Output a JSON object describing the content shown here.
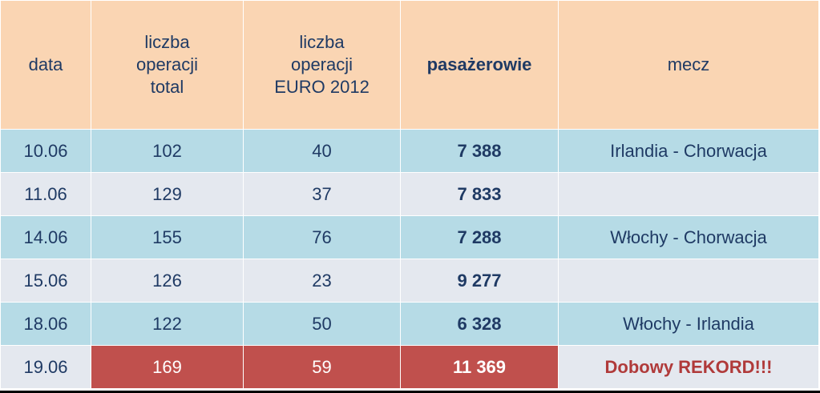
{
  "table": {
    "headers": {
      "data": "data",
      "total": [
        "liczba",
        "operacji",
        "total"
      ],
      "euro": [
        "liczba",
        "operacji",
        "EURO 2012"
      ],
      "pax": "pasażerowie",
      "mecz": "mecz"
    },
    "rows": [
      {
        "data": "10.06",
        "total": "102",
        "euro": "40",
        "pax": "7 388",
        "mecz": "Irlandia - Chorwacja"
      },
      {
        "data": "11.06",
        "total": "129",
        "euro": "37",
        "pax": "7 833",
        "mecz": ""
      },
      {
        "data": "14.06",
        "total": "155",
        "euro": "76",
        "pax": "7 288",
        "mecz": "Włochy - Chorwacja"
      },
      {
        "data": "15.06",
        "total": "126",
        "euro": "23",
        "pax": "9 277",
        "mecz": ""
      },
      {
        "data": "18.06",
        "total": "122",
        "euro": "50",
        "pax": "6 328",
        "mecz": "Włochy - Irlandia"
      },
      {
        "data": "19.06",
        "total": "169",
        "euro": "59",
        "pax": "11 369",
        "mecz": "Dobowy REKORD!!!"
      }
    ]
  },
  "colors": {
    "header_bg": "#fad5b3",
    "row_blue": "#b6dbe6",
    "row_grey": "#e4e8ef",
    "highlight_red": "#c0504d",
    "text": "#1f3a64",
    "record_text": "#b03a3a"
  }
}
